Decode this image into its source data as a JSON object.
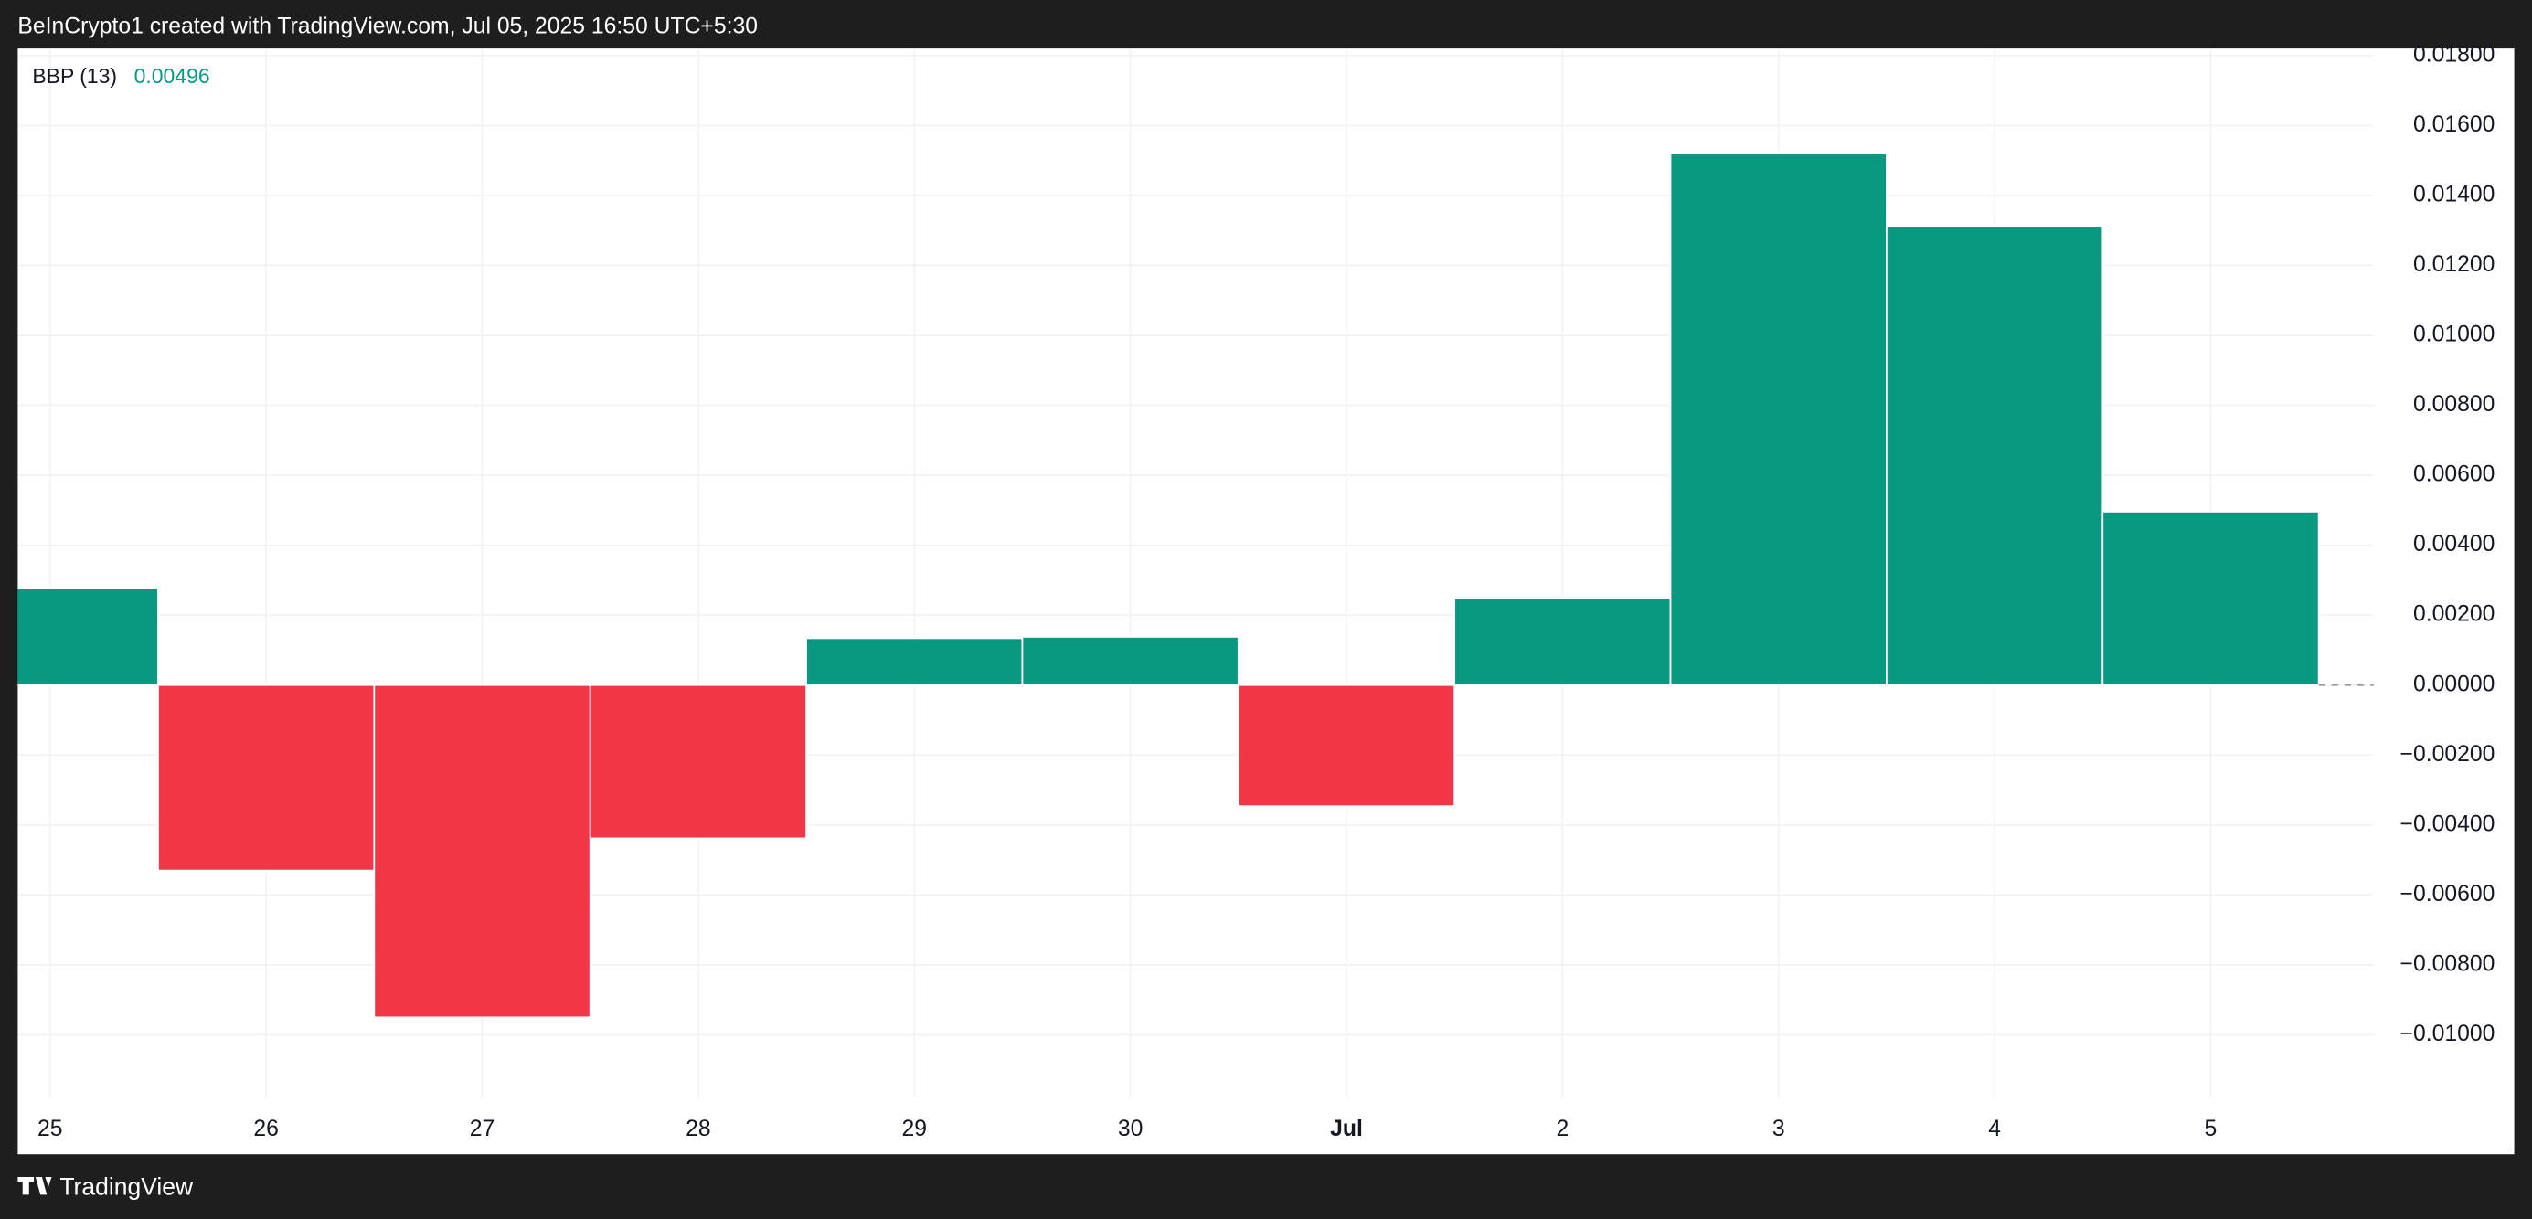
{
  "header": "BeInCrypto1 created with TradingView.com, Jul 05, 2025 16:50 UTC+5:30",
  "footer": "TradingView",
  "chart_data": {
    "type": "bar",
    "legend_name": "BBP (13)",
    "legend_value": 0.00496,
    "categories": [
      "25",
      "26",
      "27",
      "28",
      "29",
      "30",
      "Jul",
      "2",
      "3",
      "4",
      "5"
    ],
    "values": [
      0.00276,
      -0.0053,
      -0.0095,
      -0.00438,
      0.00134,
      0.00138,
      -0.00346,
      0.00249,
      0.0152,
      0.01313,
      0.00496
    ],
    "up_color": "#089981",
    "down_color": "#f23645",
    "ylim": [
      -0.0118,
      0.0182
    ],
    "yticks": [
      {
        "value": 0.018,
        "label": "0.01800"
      },
      {
        "value": 0.016,
        "label": "0.01600"
      },
      {
        "value": 0.014,
        "label": "0.01400"
      },
      {
        "value": 0.012,
        "label": "0.01200"
      },
      {
        "value": 0.01,
        "label": "0.01000"
      },
      {
        "value": 0.008,
        "label": "0.00800"
      },
      {
        "value": 0.006,
        "label": "0.00600"
      },
      {
        "value": 0.004,
        "label": "0.00400"
      },
      {
        "value": 0.002,
        "label": "0.00200"
      },
      {
        "value": 0,
        "label": "0.00000"
      },
      {
        "value": -0.002,
        "label": "−0.00200"
      },
      {
        "value": -0.004,
        "label": "−0.00400"
      },
      {
        "value": -0.006,
        "label": "−0.00600"
      },
      {
        "value": -0.008,
        "label": "−0.00800"
      },
      {
        "value": -0.01,
        "label": "−0.01000"
      }
    ],
    "grid": true
  }
}
